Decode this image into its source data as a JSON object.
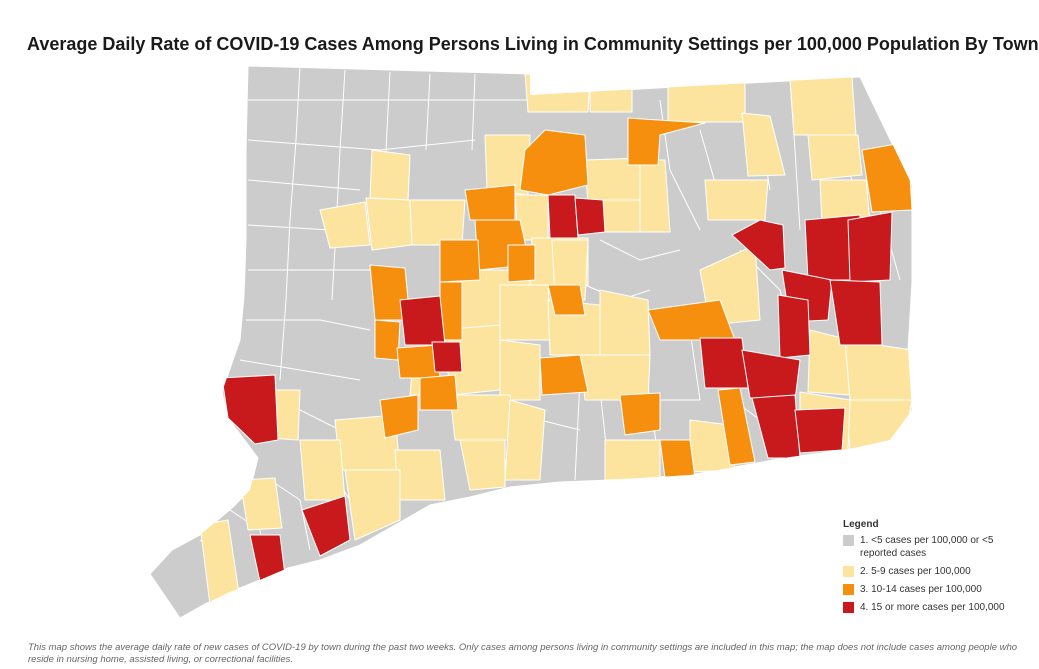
{
  "title": "Average Daily Rate of COVID-19 Cases Among Persons Living in Community Settings per 100,000 Population By Town",
  "legend": {
    "title": "Legend",
    "items": [
      {
        "label": "1. <5 cases per 100,000 or <5 reported cases",
        "color": "#cccccc"
      },
      {
        "label": "2. 5-9 cases per 100,000",
        "color": "#fde49e"
      },
      {
        "label": "3. 10-14 cases per 100,000",
        "color": "#f78f0e"
      },
      {
        "label": "4. 15 or more cases per 100,000",
        "color": "#c8191c"
      }
    ]
  },
  "footnote": "This map shows the average daily rate of new cases of COVID-19 by town during the past two weeks. Only cases among persons living in community settings are included in this map; the map does not include cases among people who reside in nursing home, assisted living, or correctional facilities.",
  "colors": {
    "border": "#ffffff",
    "base": "#cccccc"
  }
}
